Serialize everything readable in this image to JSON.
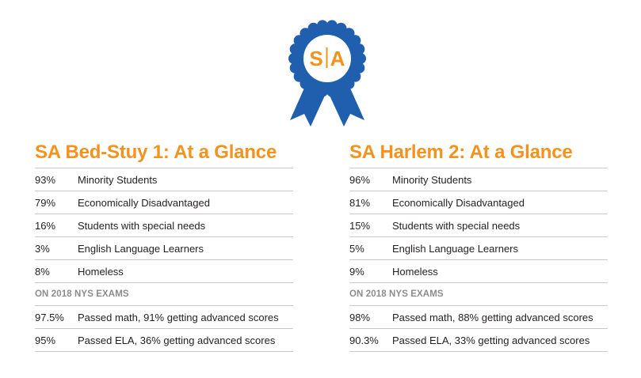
{
  "badge": {
    "logo_left": "S",
    "logo_right": "A",
    "colors": {
      "ribbon": "#1f5fae",
      "ribbon_dark": "#174a8a",
      "center": "#ffffff",
      "logo": "#f5921e"
    }
  },
  "panels": [
    {
      "title": "SA Bed-Stuy 1: At a Glance",
      "rows": [
        {
          "pct": "93%",
          "label": "Minority Students"
        },
        {
          "pct": "79%",
          "label": "Economically Disadvantaged"
        },
        {
          "pct": "16%",
          "label": "Students with special needs"
        },
        {
          "pct": "3%",
          "label": "English Language Learners"
        },
        {
          "pct": "8%",
          "label": "Homeless"
        }
      ],
      "section_label": "ON 2018 NYS EXAMS",
      "exam_rows": [
        {
          "pct": "97.5%",
          "label": "Passed math, 91% getting advanced scores"
        },
        {
          "pct": "95%",
          "label": "Passed ELA, 36% getting advanced scores"
        }
      ]
    },
    {
      "title": "SA Harlem 2: At a Glance",
      "rows": [
        {
          "pct": "96%",
          "label": "Minority Students"
        },
        {
          "pct": "81%",
          "label": "Economically Disadvantaged"
        },
        {
          "pct": "15%",
          "label": "Students with special needs"
        },
        {
          "pct": "5%",
          "label": "English Language Learners"
        },
        {
          "pct": "9%",
          "label": "Homeless"
        }
      ],
      "section_label": "ON 2018 NYS EXAMS",
      "exam_rows": [
        {
          "pct": "98%",
          "label": "Passed math, 88% getting advanced scores"
        },
        {
          "pct": "90.3%",
          "label": "Passed ELA, 33% getting advanced scores"
        }
      ]
    }
  ],
  "colors": {
    "title": "#f5921e",
    "text": "#231f20",
    "section": "#8c8c8c",
    "rule": "#c9c9c9"
  }
}
